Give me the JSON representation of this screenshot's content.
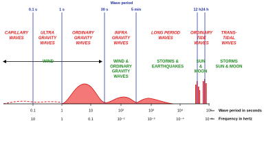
{
  "title": "Wave period",
  "period_markers": [
    "0.1 s",
    "1 s",
    "30 s",
    "5 min",
    "12 h",
    "24 h"
  ],
  "wave_bands": [
    [
      "CAPILLARY",
      "WAVES"
    ],
    [
      "ULTRA",
      "GRAVITY",
      "WAVES"
    ],
    [
      "ORDINARY",
      "GRAVITY",
      "WAVES"
    ],
    [
      "INFRA",
      "GRAVITY",
      "WAVES"
    ],
    [
      "LONG PERIOD",
      "WAVES"
    ],
    [
      "ORDINARY",
      "TIDE",
      "WAVES"
    ],
    [
      "TRANS-",
      "TIDAL",
      "WAVES"
    ]
  ],
  "forcing": [
    [
      "WIND"
    ],
    [
      "WIND &",
      "ORDINARY",
      "GRAVITY",
      "WAVES"
    ],
    [
      "STORMS &",
      "EARTHQUAKES"
    ],
    [
      "SUN",
      "&",
      "MOON"
    ],
    [
      "STORMS",
      "SUN & MOON"
    ]
  ],
  "axis": {
    "period_ticks": [
      "0.1",
      "1",
      "10",
      "10²",
      "10³",
      "10⁴",
      "10⁵"
    ],
    "frequency_ticks": [
      "10",
      "1",
      "0.1",
      "10⁻²",
      "10⁻³",
      "10⁻⁴",
      "10⁻⁵"
    ],
    "period_label": "Wave period in seconds",
    "frequency_label": "Frequency in hertz"
  }
}
